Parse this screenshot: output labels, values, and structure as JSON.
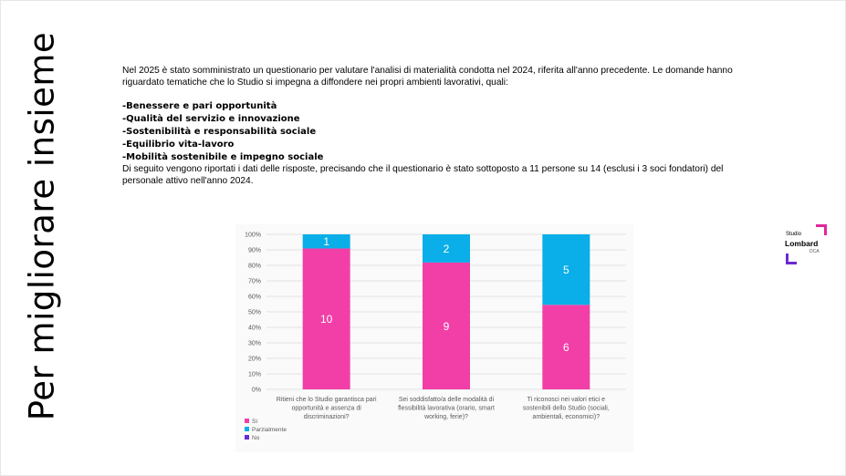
{
  "side_title": "Per migliorare insieme",
  "intro": "Nel 2025 è stato somministrato un questionario per valutare l'analisi di materialità condotta nel 2024, riferita all'anno precedente. Le domande hanno riguardato tematiche che lo Studio si impegna a diffondere nei propri ambienti lavorativi, quali:",
  "topics": [
    "-Benessere e pari opportunità",
    "-Qualità del servizio e innovazione",
    "-Sostenibilità e responsabilità sociale",
    "-Equilibrio vita-lavoro",
    "-Mobilità sostenibile e impegno sociale"
  ],
  "note": "Di seguito vengono riportati i dati delle risposte, precisando che il questionario è stato sottoposto a 11 persone su 14 (esclusi i 3 soci fondatori) del personale attivo nell'anno 2024.",
  "logo": {
    "line1": "Studio",
    "line2": "Lombard",
    "line3": "DCA",
    "pink": "#e2269a",
    "purple": "#6a2ad4"
  },
  "chart_data": {
    "type": "bar",
    "stacked": "percent",
    "categories": [
      [
        "Ritieni che lo Studio garantisca pari",
        "opportunità e assenza di",
        "discriminazioni?"
      ],
      [
        "Sei soddisfatto/a delle modalità di",
        "flessibilità lavorativa (orario, smart",
        "working, ferie)?"
      ],
      [
        "Ti riconosci nei valori etici e",
        "sostenibili dello Studio (sociali,",
        "ambientali, economici)?"
      ]
    ],
    "series": [
      {
        "name": "Sì",
        "color": "#f23fa8",
        "values": [
          10,
          9,
          6
        ]
      },
      {
        "name": "Parzialmente",
        "color": "#0aaee8",
        "values": [
          1,
          2,
          5
        ]
      },
      {
        "name": "No",
        "color": "#6a2ad4",
        "values": [
          0,
          0,
          0
        ]
      }
    ],
    "yticks": [
      "0%",
      "10%",
      "20%",
      "30%",
      "40%",
      "50%",
      "60%",
      "70%",
      "80%",
      "90%",
      "100%"
    ],
    "ylim": [
      0,
      100
    ],
    "legend_position": "bottom-left",
    "grid": true
  }
}
